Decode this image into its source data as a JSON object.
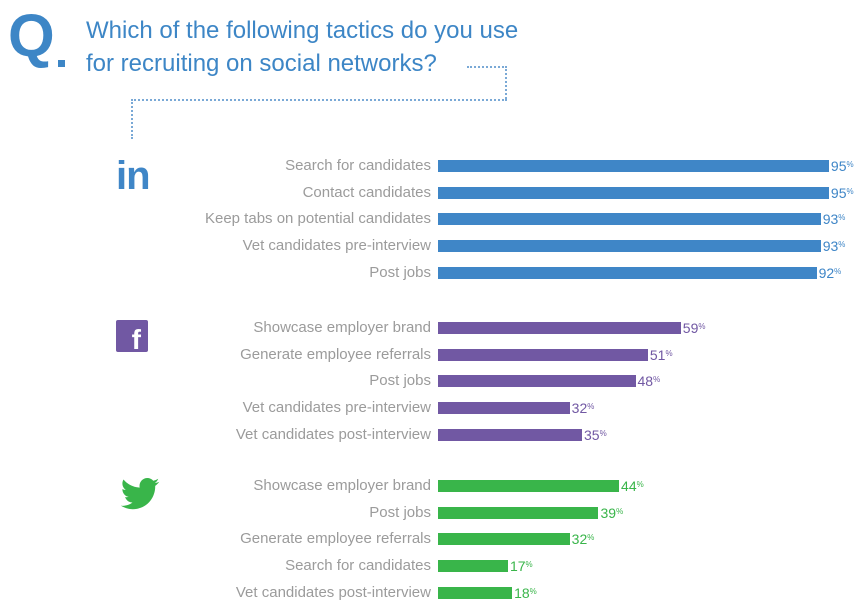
{
  "header": {
    "q_letter": "Q",
    "question_line1": "Which of the following tactics do you use",
    "question_line2": "for recruiting on social networks?"
  },
  "colors": {
    "header_blue": "#3d86c6",
    "linkedin": "#3f86c7",
    "facebook": "#7158a3",
    "twitter": "#39b54a",
    "label_gray": "#9b9b9b",
    "dots": "#7aa9d6"
  },
  "chart_data": {
    "type": "bar",
    "orientation": "horizontal",
    "title": "Which of the following tactics do you use for recruiting on social networks?",
    "unit": "%",
    "xlim": [
      0,
      100
    ],
    "groups": [
      {
        "name": "LinkedIn",
        "icon": "linkedin-icon",
        "icon_text": "in",
        "color": "#3f86c7",
        "categories": [
          "Search for candidates",
          "Contact candidates",
          "Keep tabs on potential candidates",
          "Vet candidates pre-interview",
          "Post jobs"
        ],
        "values": [
          95,
          95,
          93,
          93,
          92
        ]
      },
      {
        "name": "Facebook",
        "icon": "facebook-icon",
        "icon_text": "f",
        "color": "#7158a3",
        "categories": [
          "Showcase employer brand",
          "Generate employee referrals",
          "Post jobs",
          "Vet candidates pre-interview",
          "Vet candidates post-interview"
        ],
        "values": [
          59,
          51,
          48,
          32,
          35
        ]
      },
      {
        "name": "Twitter",
        "icon": "twitter-bird-icon",
        "icon_text": "",
        "color": "#39b54a",
        "categories": [
          "Showcase employer brand",
          "Post jobs",
          "Generate employee referrals",
          "Search for candidates",
          "Vet candidates post-interview"
        ],
        "values": [
          44,
          39,
          32,
          17,
          18
        ]
      }
    ]
  }
}
